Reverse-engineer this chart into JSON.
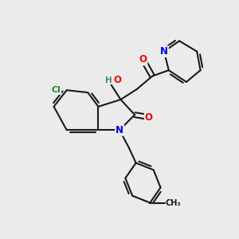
{
  "bg_color": "#ebebeb",
  "bond_color": "#1a1a1a",
  "bond_width": 1.5,
  "atom_colors": {
    "N": "#0000ee",
    "O": "#ee0000",
    "Cl": "#228822",
    "H": "#448888",
    "C": "#1a1a1a"
  },
  "font_size_atom": 8.5,
  "fig_size": [
    3.0,
    3.0
  ],
  "dpi": 100
}
